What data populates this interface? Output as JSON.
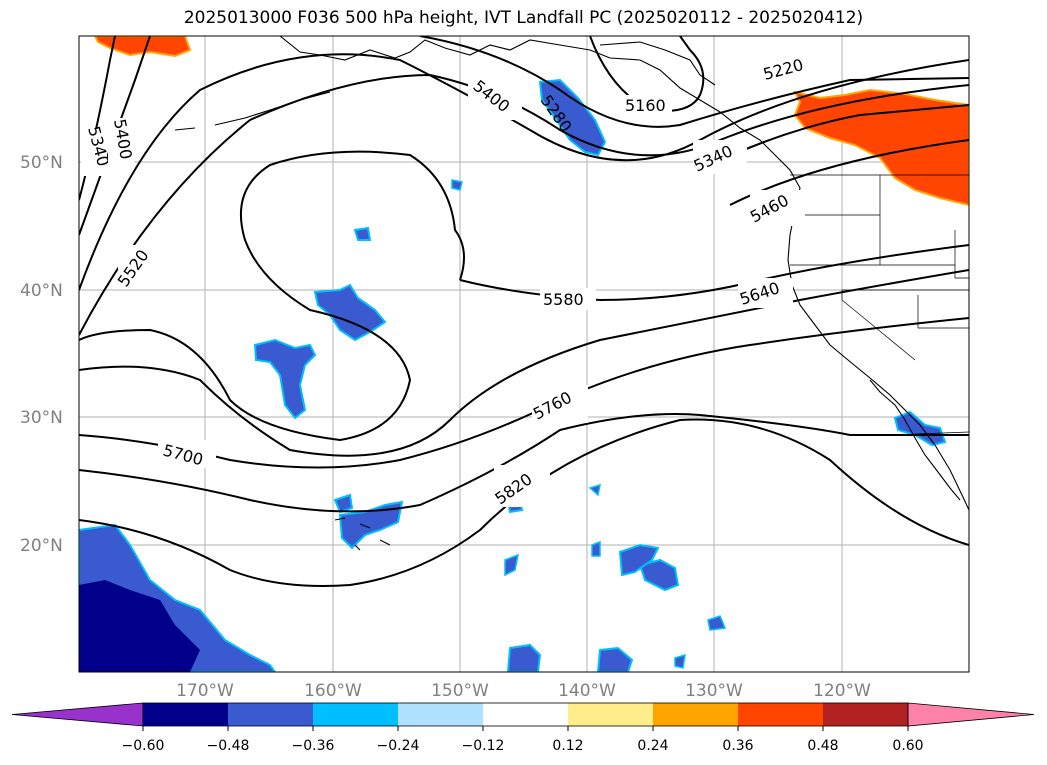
{
  "title": "2025013000 F036 500 hPa height, IVT Landfall PC (2025020112 - 2025020412)",
  "map": {
    "lat_labels": [
      "50°N",
      "40°N",
      "30°N",
      "20°N"
    ],
    "lon_labels": [
      "170°W",
      "160°W",
      "150°W",
      "140°W",
      "130°W",
      "120°W"
    ],
    "contour_labels": [
      "5340",
      "5400",
      "5520",
      "5700",
      "5400",
      "5280",
      "5160",
      "5220",
      "5340",
      "5460",
      "5580",
      "5640",
      "5760",
      "5820"
    ]
  },
  "colorbar": {
    "ticks": [
      "−0.60",
      "−0.48",
      "−0.36",
      "−0.24",
      "−0.12",
      "0.12",
      "0.24",
      "0.36",
      "0.48",
      "0.60"
    ],
    "colors": [
      "#9932CC",
      "#00008B",
      "#3A5BD0",
      "#00BFFF",
      "#B0E2FF",
      "#FFFFFF",
      "#FFEC8B",
      "#FFA500",
      "#FF4500",
      "#B22222",
      "#FF82AB"
    ]
  }
}
